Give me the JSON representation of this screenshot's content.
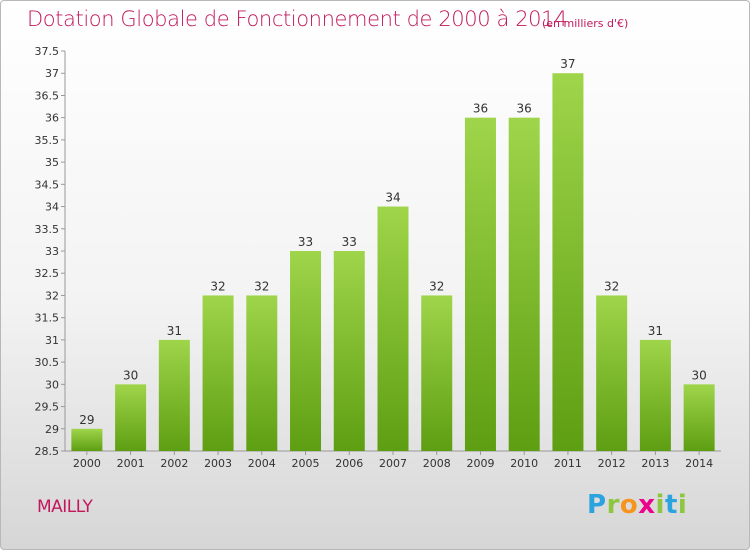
{
  "title": "Dotation Globale de Fonctionnement de 2000 à 2014",
  "subtitle": "(en milliers d'€)",
  "commune": "MAILLY",
  "brand": {
    "letters": [
      "P",
      "r",
      "o",
      "x",
      "i",
      "t",
      "i"
    ],
    "colors": [
      "#2aa3df",
      "#8dc63f",
      "#f7941d",
      "#ec008c",
      "#8dc63f",
      "#2aa3df",
      "#8dc63f"
    ]
  },
  "colors": {
    "title": "#c2185b",
    "bar_top": "#9fd54a",
    "bar_bottom": "#5e9e12"
  },
  "chart_data": {
    "type": "bar",
    "categories": [
      "2000",
      "2001",
      "2002",
      "2003",
      "2004",
      "2005",
      "2006",
      "2007",
      "2008",
      "2009",
      "2010",
      "2011",
      "2012",
      "2013",
      "2014"
    ],
    "values": [
      29,
      30,
      31,
      32,
      32,
      33,
      33,
      34,
      32,
      36,
      36,
      37,
      32,
      31,
      30
    ],
    "value_labels": [
      "29",
      "30",
      "31",
      "32",
      "32",
      "33",
      "33",
      "34",
      "32",
      "36",
      "36",
      "37",
      "32",
      "31",
      "30"
    ],
    "yticks": [
      "28.5",
      "29",
      "29.5",
      "30",
      "30.5",
      "31",
      "31.5",
      "32",
      "32.5",
      "33",
      "33.5",
      "34",
      "34.5",
      "35",
      "35.5",
      "36",
      "36.5",
      "37",
      "37.5"
    ],
    "ylim": [
      28.5,
      37.5
    ],
    "grid": false,
    "title": "Dotation Globale de Fonctionnement de 2000 à 2014",
    "xlabel": "",
    "ylabel": ""
  }
}
